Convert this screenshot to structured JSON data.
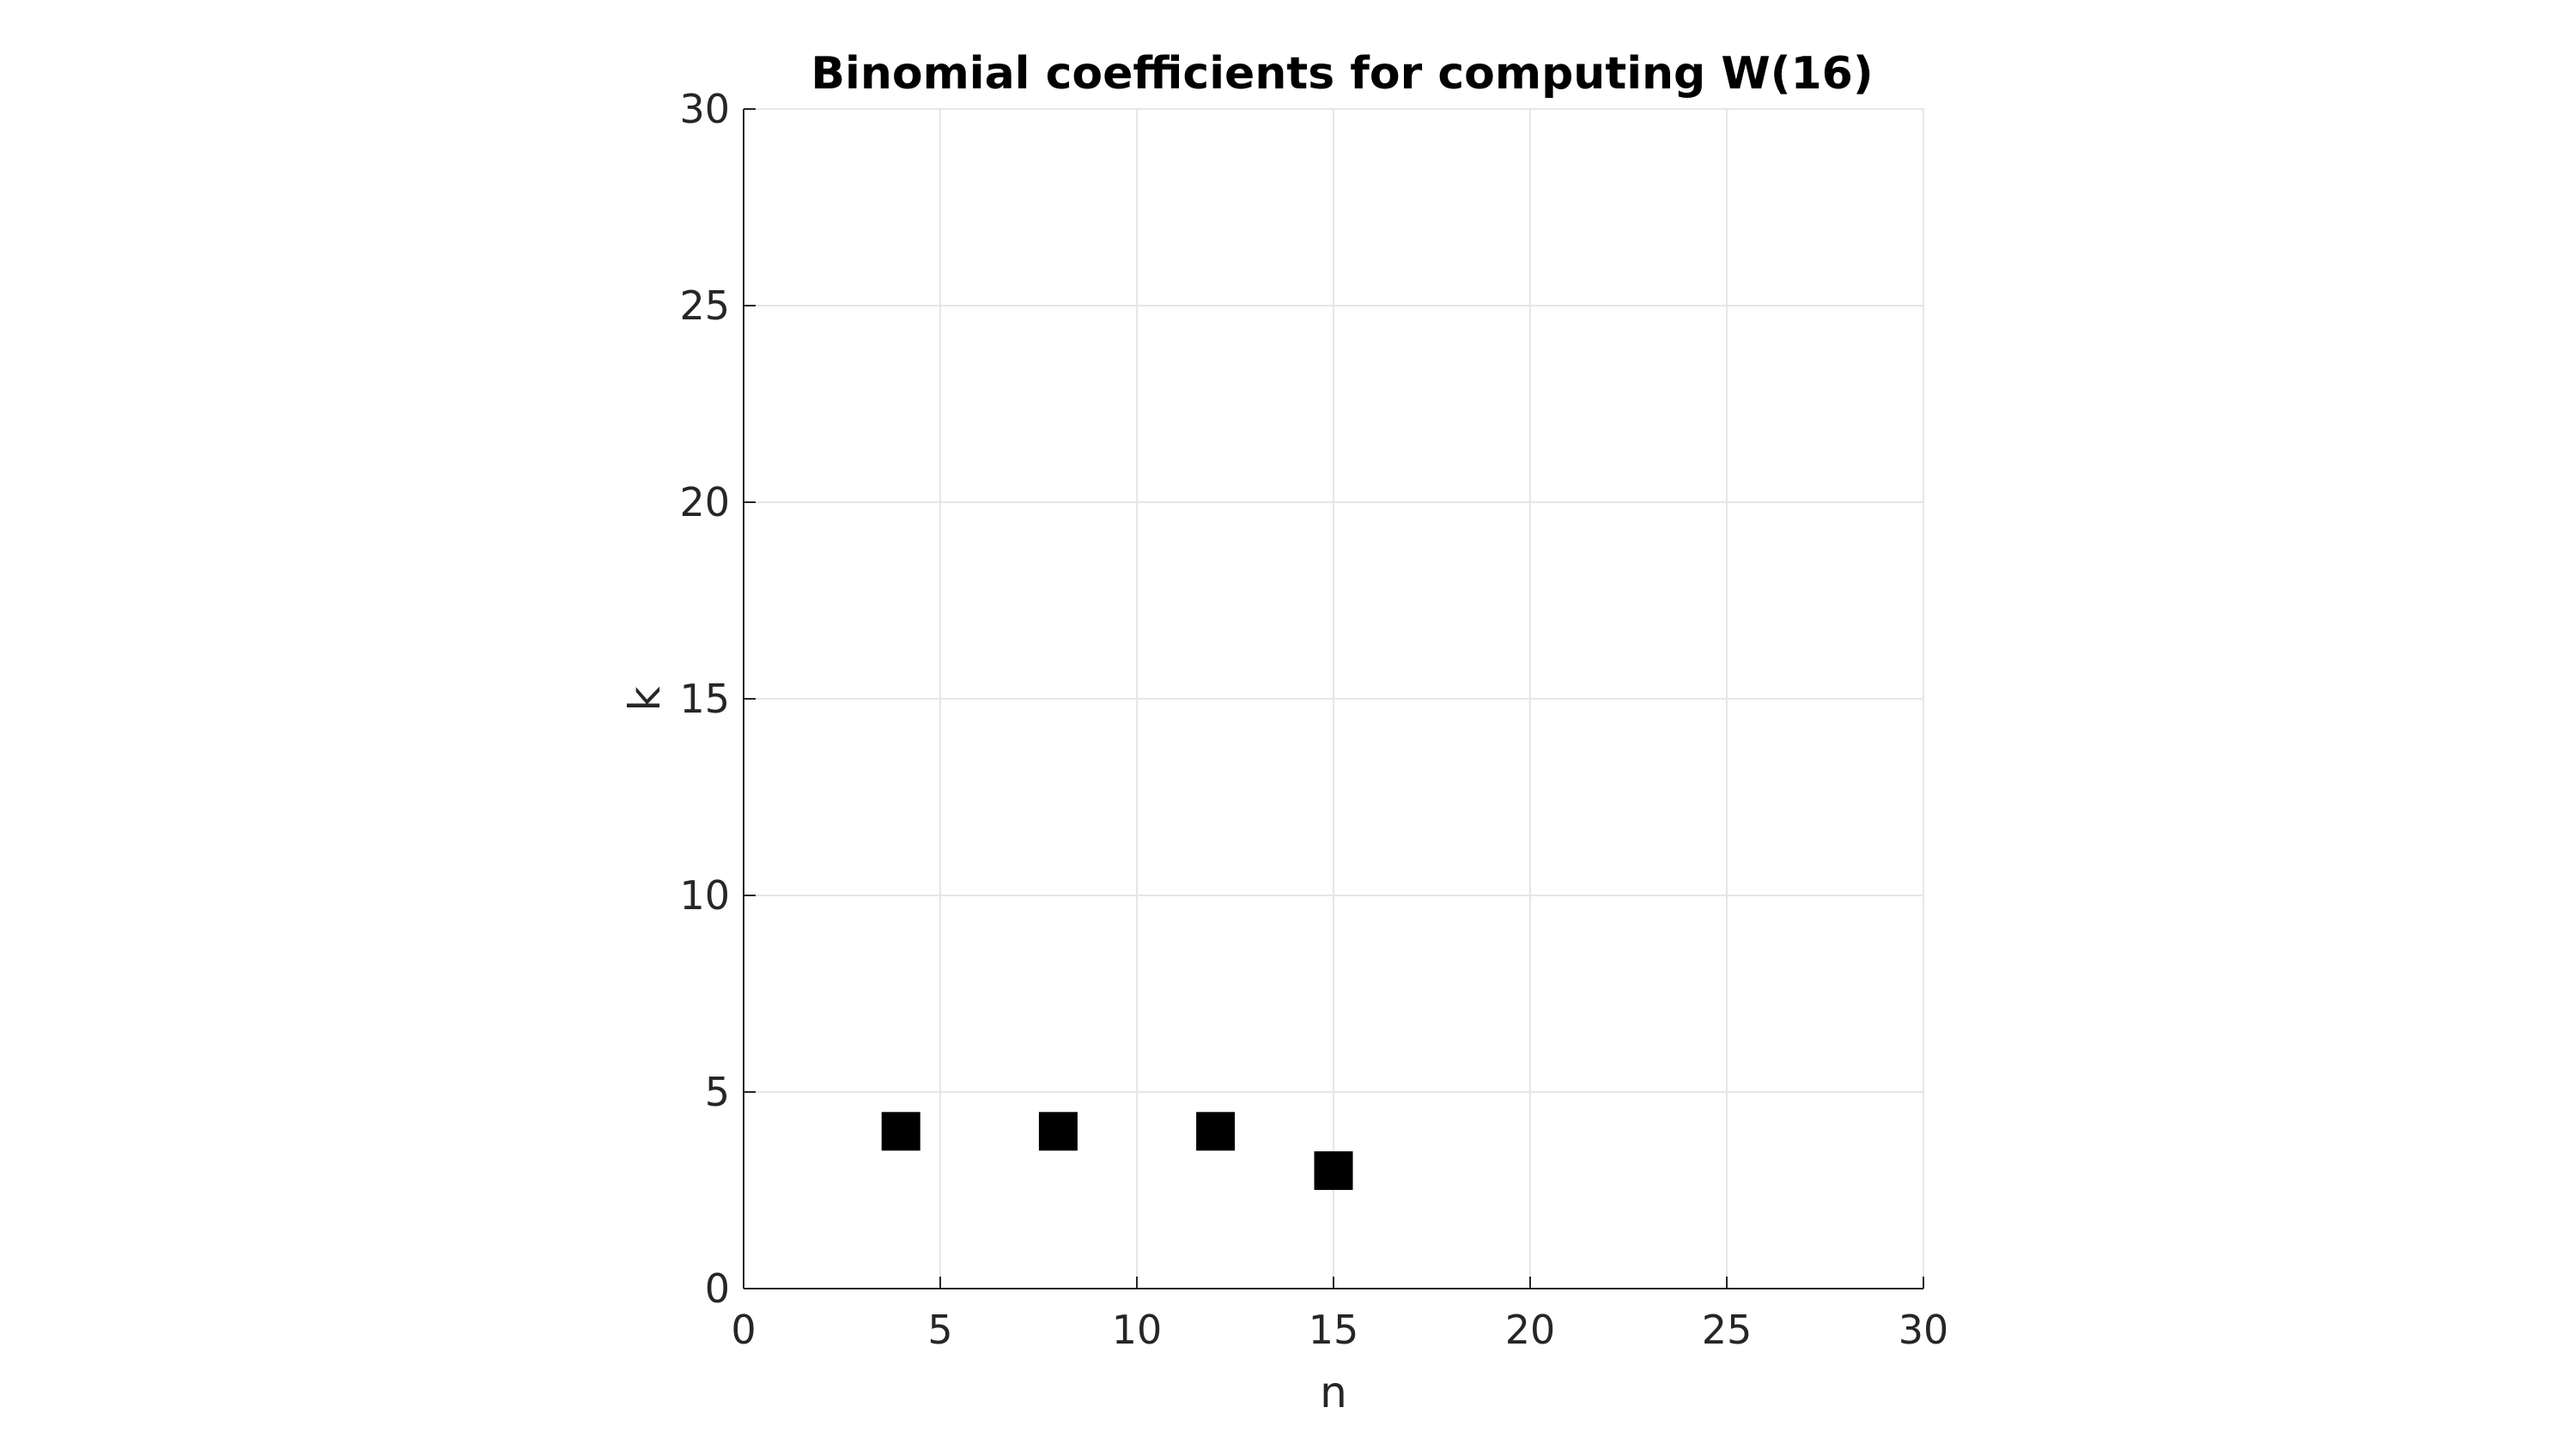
{
  "chart_data": {
    "type": "scatter",
    "title": "Binomial coefficients for computing W(16)",
    "xlabel": "n",
    "ylabel": "k",
    "xlim": [
      0,
      30
    ],
    "ylim": [
      0,
      30
    ],
    "xticks": [
      0,
      5,
      10,
      15,
      20,
      25,
      30
    ],
    "yticks": [
      0,
      5,
      10,
      15,
      20,
      25,
      30
    ],
    "grid": true,
    "marker": "square",
    "marker_color": "#000000",
    "points": [
      {
        "x": 4,
        "y": 4
      },
      {
        "x": 8,
        "y": 4
      },
      {
        "x": 12,
        "y": 4
      },
      {
        "x": 15,
        "y": 3
      }
    ]
  }
}
